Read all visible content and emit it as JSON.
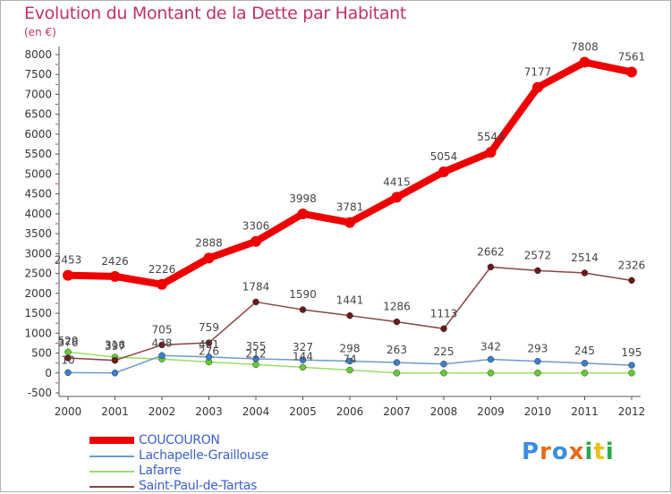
{
  "header": {
    "title": "Evolution du Montant de la Dette par Habitant",
    "subtitle": "(en €)"
  },
  "logo": {
    "letters": [
      {
        "char": "P",
        "color": "#3a8ee0"
      },
      {
        "char": "r",
        "color": "#e86a1a"
      },
      {
        "char": "o",
        "color": "#3a8ee0"
      },
      {
        "char": "x",
        "color": "#e86a1a"
      },
      {
        "char": "i",
        "color": "#2aa84a"
      },
      {
        "char": "t",
        "color": "#e8c01a"
      },
      {
        "char": "i",
        "color": "#2aa84a"
      }
    ]
  },
  "chart_data": {
    "type": "line",
    "title": "Evolution du Montant de la Dette par Habitant",
    "ylabel": "(en €)",
    "xlabel": "",
    "x": [
      "2000",
      "2001",
      "2002",
      "2003",
      "2004",
      "2005",
      "2006",
      "2007",
      "2008",
      "2009",
      "2010",
      "2011",
      "2012"
    ],
    "ylim": [
      -500,
      8000
    ],
    "yticks": [
      -500,
      0,
      500,
      1000,
      1500,
      2000,
      2500,
      3000,
      3500,
      4000,
      4500,
      5000,
      5500,
      6000,
      6500,
      7000,
      7500,
      8000
    ],
    "grid": false,
    "legend_position": "bottom-left",
    "series": [
      {
        "name": "COUCOURON",
        "color": "#ee0000",
        "marker_color": "#ee0000",
        "values": [
          2453,
          2426,
          2226,
          2888,
          3306,
          3998,
          3781,
          4415,
          5054,
          5544,
          7177,
          7808,
          7561
        ],
        "labels": [
          "2453",
          "2426",
          "2226",
          "2888",
          "3306",
          "3998",
          "3781",
          "4415",
          "5054",
          "5544",
          "7177",
          "7808",
          "7561"
        ]
      },
      {
        "name": "Lachapelle-Graillouse",
        "color": "#6a9ccc",
        "marker_color": "#3a7ecc",
        "values": [
          10,
          0,
          438,
          401,
          355,
          327,
          298,
          263,
          225,
          342,
          293,
          245,
          195
        ],
        "labels": [
          "10",
          "",
          "438",
          "401",
          "355",
          "327",
          "298",
          "263",
          "225",
          "342",
          "293",
          "245",
          "195"
        ]
      },
      {
        "name": "Lafarre",
        "color": "#99dd66",
        "marker_color": "#66cc33",
        "values": [
          529,
          397,
          350,
          276,
          212,
          144,
          74,
          0,
          0,
          0,
          0,
          0,
          0
        ],
        "labels": [
          "529",
          "397",
          "",
          "276",
          "212",
          "144",
          "74",
          "",
          "",
          "",
          "",
          "",
          ""
        ]
      },
      {
        "name": "Saint-Paul-de-Tartas",
        "color": "#884444",
        "marker_color": "#6a1a1a",
        "values": [
          376,
          316,
          705,
          759,
          1784,
          1590,
          1441,
          1286,
          1113,
          2662,
          2572,
          2514,
          2326
        ],
        "labels": [
          "376",
          "316",
          "705",
          "759",
          "1784",
          "1590",
          "1441",
          "1286",
          "1113",
          "2662",
          "2572",
          "2514",
          "2326"
        ]
      }
    ]
  }
}
